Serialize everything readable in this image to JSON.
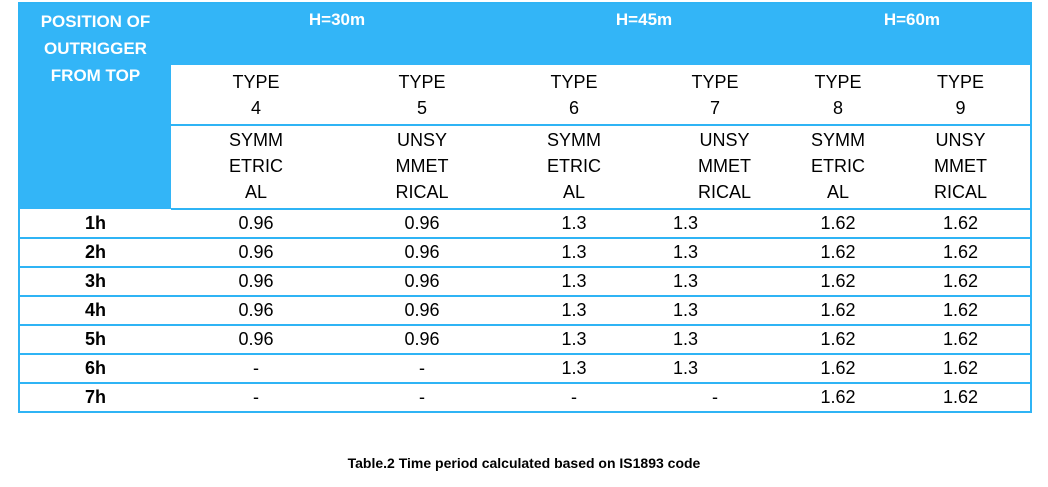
{
  "table": {
    "row_header": [
      "POSITION OF",
      "OUTRIGGER",
      "FROM TOP"
    ],
    "groups": [
      {
        "label": "H=30m"
      },
      {
        "label": "H=45m"
      },
      {
        "label": "H=60m"
      }
    ],
    "types": [
      {
        "t1": "TYPE",
        "t2": "4",
        "s1": "SYMM",
        "s2": "ETRIC",
        "s3": "AL"
      },
      {
        "t1": "TYPE",
        "t2": "5",
        "s1": "UNSY",
        "s2": "MMET",
        "s3": "RICAL"
      },
      {
        "t1": "TYPE",
        "t2": "6",
        "s1": "SYMM",
        "s2": "ETRIC",
        "s3": "AL"
      },
      {
        "t1": "TYPE",
        "t2": "7",
        "s1": "UNSY",
        "s2": "MMET",
        "s3": "RICAL"
      },
      {
        "t1": "TYPE",
        "t2": "8",
        "s1": "SYMM",
        "s2": "ETRIC",
        "s3": "AL"
      },
      {
        "t1": "TYPE",
        "t2": "9",
        "s1": "UNSY",
        "s2": "MMET",
        "s3": "RICAL"
      }
    ],
    "rows": [
      {
        "pos": "1h",
        "v": [
          "0.96",
          "0.96",
          "1.3",
          "1.3",
          "1.62",
          "1.62"
        ]
      },
      {
        "pos": "2h",
        "v": [
          "0.96",
          "0.96",
          "1.3",
          "1.3",
          "1.62",
          "1.62"
        ]
      },
      {
        "pos": "3h",
        "v": [
          "0.96",
          "0.96",
          "1.3",
          "1.3",
          "1.62",
          "1.62"
        ]
      },
      {
        "pos": "4h",
        "v": [
          "0.96",
          "0.96",
          "1.3",
          "1.3",
          "1.62",
          "1.62"
        ]
      },
      {
        "pos": "5h",
        "v": [
          "0.96",
          "0.96",
          "1.3",
          "1.3",
          "1.62",
          "1.62"
        ]
      },
      {
        "pos": "6h",
        "v": [
          "-",
          "-",
          "1.3",
          "1.3",
          "1.62",
          "1.62"
        ]
      },
      {
        "pos": "7h",
        "v": [
          "-",
          "-",
          "-",
          "-",
          "1.62",
          "1.62"
        ]
      }
    ]
  },
  "caption": "Table.2 Time period calculated based on IS1893 code",
  "colors": {
    "header_blue": "#33b5f7",
    "border_blue": "#2fb4f5"
  }
}
